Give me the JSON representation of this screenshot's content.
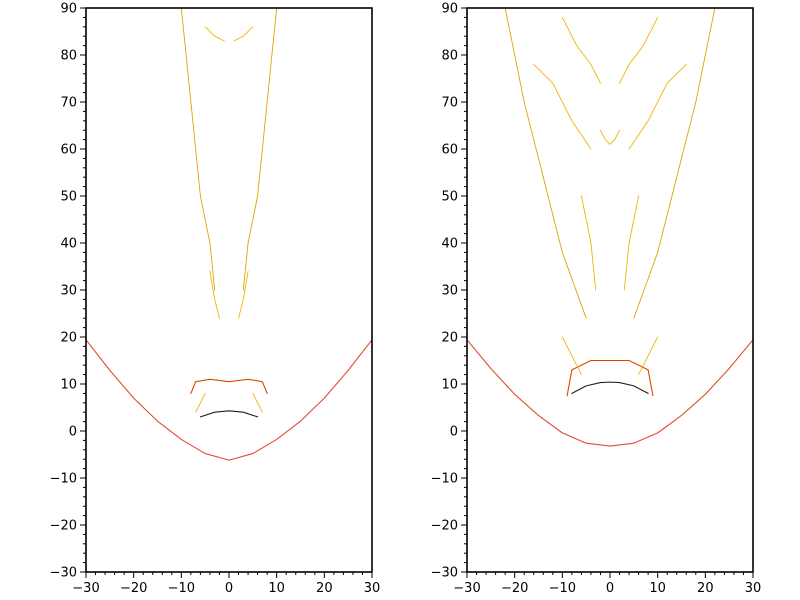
{
  "chart_data": [
    {
      "type": "line",
      "title": "",
      "xlabel": "",
      "ylabel": "",
      "xlim": [
        -30,
        30
      ],
      "ylim": [
        -30,
        90
      ],
      "xticks": [
        "−30",
        "−20",
        "−10",
        "0",
        "10",
        "20",
        "30"
      ],
      "yticks": [
        "−30",
        "−20",
        "−10",
        "0",
        "10",
        "20",
        "30",
        "40",
        "50",
        "60",
        "70",
        "80",
        "90"
      ],
      "grid": false,
      "series": [
        {
          "color": "#e34a33",
          "x": [
            -30,
            -25,
            -20,
            -15,
            -10,
            -5,
            0,
            5,
            10,
            15,
            20,
            25,
            30
          ],
          "y": [
            19.4,
            12.9,
            7.0,
            2.1,
            -1.8,
            -4.8,
            -6.2,
            -4.8,
            -1.8,
            2.1,
            7.0,
            12.9,
            19.4
          ]
        },
        {
          "color": "#2b1d0e",
          "x": [
            -6,
            -3,
            0,
            3,
            6
          ],
          "y": [
            3.0,
            4.0,
            4.3,
            4.0,
            3.0
          ]
        },
        {
          "color": "#d94801",
          "x": [
            -8,
            -7,
            -4,
            0,
            4,
            7,
            8
          ],
          "y": [
            8.0,
            10.5,
            11.0,
            10.5,
            11.0,
            10.5,
            8.0
          ]
        },
        {
          "color": "#e6a100",
          "x": [
            -10,
            -8,
            -6,
            -4,
            -3
          ],
          "y": [
            90,
            70,
            50,
            40,
            30
          ]
        },
        {
          "color": "#e6a100",
          "x": [
            3,
            4,
            6,
            8,
            10
          ],
          "y": [
            30,
            40,
            50,
            70,
            90
          ]
        },
        {
          "color": "#f0b400",
          "x": [
            -7,
            -6,
            -5
          ],
          "y": [
            4,
            6,
            8
          ]
        },
        {
          "color": "#f0b400",
          "x": [
            5,
            6,
            7
          ],
          "y": [
            8,
            6,
            4
          ]
        },
        {
          "color": "#f0b400",
          "x": [
            -4,
            -3,
            -2
          ],
          "y": [
            34,
            28,
            24
          ]
        },
        {
          "color": "#f0b400",
          "x": [
            2,
            3,
            4
          ],
          "y": [
            24,
            28,
            34
          ]
        },
        {
          "color": "#f0b400",
          "x": [
            -5,
            -3,
            -1
          ],
          "y": [
            86,
            84,
            83
          ]
        },
        {
          "color": "#f0b400",
          "x": [
            1,
            3,
            5
          ],
          "y": [
            83,
            84,
            86
          ]
        }
      ]
    },
    {
      "type": "line",
      "title": "",
      "xlabel": "",
      "ylabel": "",
      "xlim": [
        -30,
        30
      ],
      "ylim": [
        -30,
        90
      ],
      "xticks": [
        "−30",
        "−20",
        "−10",
        "0",
        "10",
        "20",
        "30"
      ],
      "yticks": [
        "−30",
        "−20",
        "−10",
        "0",
        "10",
        "20",
        "30",
        "40",
        "50",
        "60",
        "70",
        "80",
        "90"
      ],
      "grid": false,
      "series": [
        {
          "color": "#e34a33",
          "x": [
            -30,
            -25,
            -20,
            -15,
            -10,
            -5,
            0,
            5,
            10,
            15,
            20,
            25,
            30
          ],
          "y": [
            19.4,
            13.3,
            7.8,
            3.3,
            -0.4,
            -2.6,
            -3.2,
            -2.6,
            -0.4,
            3.3,
            7.8,
            13.3,
            19.4
          ]
        },
        {
          "color": "#2b1d0e",
          "x": [
            -8,
            -5,
            -2,
            0,
            2,
            5,
            8
          ],
          "y": [
            8.0,
            9.6,
            10.3,
            10.4,
            10.3,
            9.6,
            8.0
          ]
        },
        {
          "color": "#d94801",
          "x": [
            -9,
            -8,
            -4,
            0,
            4,
            8,
            9
          ],
          "y": [
            7.5,
            13,
            15,
            15,
            15,
            13,
            7.5
          ]
        },
        {
          "color": "#e6a100",
          "x": [
            -22,
            -18,
            -15,
            -10,
            -5
          ],
          "y": [
            90,
            70,
            58,
            38,
            24
          ]
        },
        {
          "color": "#e6a100",
          "x": [
            5,
            10,
            15,
            18,
            22
          ],
          "y": [
            24,
            38,
            58,
            70,
            90
          ]
        },
        {
          "color": "#f0b400",
          "x": [
            -16,
            -12,
            -8,
            -4
          ],
          "y": [
            78,
            74,
            66,
            60
          ]
        },
        {
          "color": "#f0b400",
          "x": [
            4,
            8,
            12,
            16
          ],
          "y": [
            60,
            66,
            74,
            78
          ]
        },
        {
          "color": "#f0b400",
          "x": [
            -10,
            -7,
            -4,
            -2
          ],
          "y": [
            88,
            82,
            78,
            74
          ]
        },
        {
          "color": "#f0b400",
          "x": [
            2,
            4,
            7,
            10
          ],
          "y": [
            74,
            78,
            82,
            88
          ]
        },
        {
          "color": "#f0b400",
          "x": [
            -6,
            -4,
            -3
          ],
          "y": [
            50,
            40,
            30
          ]
        },
        {
          "color": "#f0b400",
          "x": [
            3,
            4,
            6
          ],
          "y": [
            30,
            40,
            50
          ]
        },
        {
          "color": "#f0b400",
          "x": [
            -10,
            -8,
            -6
          ],
          "y": [
            20,
            16,
            12
          ]
        },
        {
          "color": "#f0b400",
          "x": [
            6,
            8,
            10
          ],
          "y": [
            12,
            16,
            20
          ]
        },
        {
          "color": "#f0b400",
          "x": [
            -2,
            -1,
            0,
            1,
            2
          ],
          "y": [
            64,
            62,
            61,
            62,
            64
          ]
        }
      ]
    }
  ]
}
